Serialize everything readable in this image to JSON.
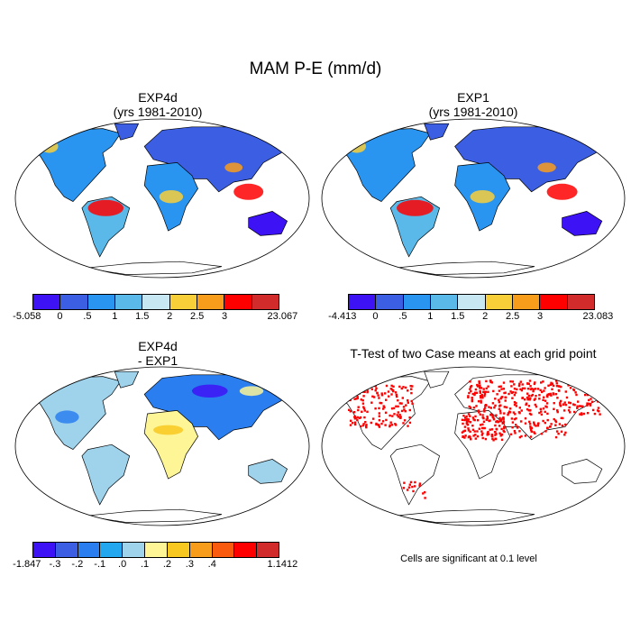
{
  "title": "MAM P-E (mm/d)",
  "panels": [
    {
      "id": "exp4d",
      "title_lines": [
        "EXP4d",
        "(yrs 1981-2010)"
      ]
    },
    {
      "id": "exp1",
      "title_lines": [
        "EXP1",
        "(yrs 1981-2010)"
      ]
    },
    {
      "id": "diff",
      "title_lines": [
        "EXP4d",
        "- EXP1"
      ]
    },
    {
      "id": "ttest",
      "title_lines": [
        "T-Test of two Case means at each grid point"
      ]
    }
  ],
  "colorbars": [
    {
      "id": "exp4d",
      "colors": [
        "#3d13f5",
        "#3c5ee3",
        "#2a95f0",
        "#5ab9e8",
        "#c7e7f3",
        "#f8cf38",
        "#f89c1c",
        "#fe0000",
        "#d22b2b"
      ],
      "labels": [
        "-5.058",
        "0",
        ".5",
        "1",
        "1.5",
        "2",
        "2.5",
        "3",
        "23.067"
      ]
    },
    {
      "id": "exp1",
      "colors": [
        "#3d13f5",
        "#3c5ee3",
        "#2a95f0",
        "#5ab9e8",
        "#c7e7f3",
        "#f8cf38",
        "#f89c1c",
        "#fe0000",
        "#d22b2b"
      ],
      "labels": [
        "-4.413",
        "0",
        ".5",
        "1",
        "1.5",
        "2",
        "2.5",
        "3",
        "23.083"
      ]
    },
    {
      "id": "diff",
      "colors": [
        "#3d13f5",
        "#3c5ee3",
        "#2a7ef0",
        "#23a8f0",
        "#9fd3ec",
        "#fdf596",
        "#f8c820",
        "#f89c1c",
        "#fa5a0e",
        "#fe0000",
        "#d22b2b"
      ],
      "labels": [
        "-1.847",
        "-.3",
        "-.2",
        "-.1",
        ".0",
        ".1",
        ".2",
        ".3",
        ".4",
        "1.1412"
      ]
    }
  ],
  "significance_note": "Cells are significant at 0.1 level",
  "colors": {
    "ocean": "#ffffff",
    "coast": "#000000",
    "significant": "#ff0000"
  }
}
